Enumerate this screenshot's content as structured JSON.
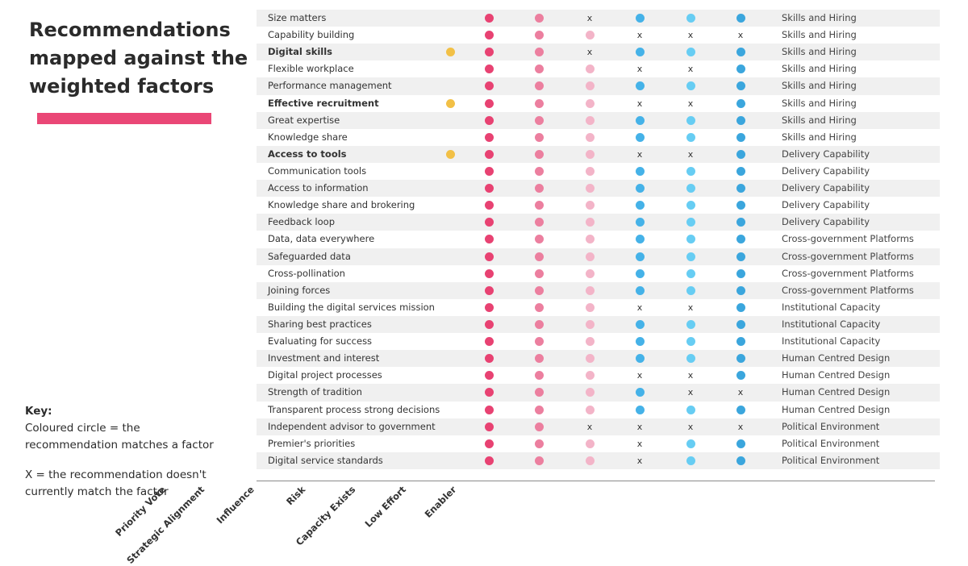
{
  "title": "Recommendations mapped against the weighted factors",
  "colors": {
    "priority": "#f2c046",
    "strategic_alignment": "#e84272",
    "influence": "#ec7f9f",
    "risk": "#f3b4c8",
    "capacity": "#45b2e8",
    "low_effort": "#67cdf3",
    "enabler": "#3ba6dd",
    "title_bar": "#ea4776",
    "row_shade": "#f0f0f0"
  },
  "key": {
    "heading": "Key:",
    "line1": "Coloured circle = the",
    "line2": "recommendation matches a factor",
    "line3": "X = the recommendation doesn't",
    "line4": "currently match the factor"
  },
  "x_symbol": "x",
  "columns": [
    {
      "id": "priority",
      "label": "Priority Vote"
    },
    {
      "id": "strategic_alignment",
      "label": "Strategic Alignment"
    },
    {
      "id": "influence",
      "label": "Influence"
    },
    {
      "id": "risk",
      "label": "Risk"
    },
    {
      "id": "capacity",
      "label": "Capacity Exists"
    },
    {
      "id": "low_effort",
      "label": "Low Effort"
    },
    {
      "id": "enabler",
      "label": "Enabler"
    }
  ],
  "rows": [
    {
      "name": "Size matters",
      "bold": false,
      "category": "Skills and Hiring",
      "priority": "none",
      "strategic_alignment": "dot",
      "influence": "dot",
      "risk": "x",
      "capacity": "dot",
      "low_effort": "dot",
      "enabler": "dot"
    },
    {
      "name": "Capability building",
      "bold": false,
      "category": "Skills and Hiring",
      "priority": "none",
      "strategic_alignment": "dot",
      "influence": "dot",
      "risk": "dot",
      "capacity": "x",
      "low_effort": "x",
      "enabler": "x"
    },
    {
      "name": "Digital skills",
      "bold": true,
      "category": "Skills and Hiring",
      "priority": "dot",
      "strategic_alignment": "dot",
      "influence": "dot",
      "risk": "x",
      "capacity": "dot",
      "low_effort": "dot",
      "enabler": "dot"
    },
    {
      "name": "Flexible workplace",
      "bold": false,
      "category": "Skills and Hiring",
      "priority": "none",
      "strategic_alignment": "dot",
      "influence": "dot",
      "risk": "dot",
      "capacity": "x",
      "low_effort": "x",
      "enabler": "dot"
    },
    {
      "name": "Performance management",
      "bold": false,
      "category": "Skills and Hiring",
      "priority": "none",
      "strategic_alignment": "dot",
      "influence": "dot",
      "risk": "dot",
      "capacity": "dot",
      "low_effort": "dot",
      "enabler": "dot"
    },
    {
      "name": "Effective recruitment",
      "bold": true,
      "category": "Skills and Hiring",
      "priority": "dot",
      "strategic_alignment": "dot",
      "influence": "dot",
      "risk": "dot",
      "capacity": "x",
      "low_effort": "x",
      "enabler": "dot"
    },
    {
      "name": "Great expertise",
      "bold": false,
      "category": "Skills and Hiring",
      "priority": "none",
      "strategic_alignment": "dot",
      "influence": "dot",
      "risk": "dot",
      "capacity": "dot",
      "low_effort": "dot",
      "enabler": "dot"
    },
    {
      "name": "Knowledge share",
      "bold": false,
      "category": "Skills and Hiring",
      "priority": "none",
      "strategic_alignment": "dot",
      "influence": "dot",
      "risk": "dot",
      "capacity": "dot",
      "low_effort": "dot",
      "enabler": "dot"
    },
    {
      "name": "Access to tools",
      "bold": true,
      "category": "Delivery Capability",
      "priority": "dot",
      "strategic_alignment": "dot",
      "influence": "dot",
      "risk": "dot",
      "capacity": "x",
      "low_effort": "x",
      "enabler": "dot"
    },
    {
      "name": "Communication tools",
      "bold": false,
      "category": "Delivery Capability",
      "priority": "none",
      "strategic_alignment": "dot",
      "influence": "dot",
      "risk": "dot",
      "capacity": "dot",
      "low_effort": "dot",
      "enabler": "dot"
    },
    {
      "name": "Access to information",
      "bold": false,
      "category": "Delivery Capability",
      "priority": "none",
      "strategic_alignment": "dot",
      "influence": "dot",
      "risk": "dot",
      "capacity": "dot",
      "low_effort": "dot",
      "enabler": "dot"
    },
    {
      "name": "Knowledge share and brokering",
      "bold": false,
      "category": "Delivery Capability",
      "priority": "none",
      "strategic_alignment": "dot",
      "influence": "dot",
      "risk": "dot",
      "capacity": "dot",
      "low_effort": "dot",
      "enabler": "dot"
    },
    {
      "name": "Feedback loop",
      "bold": false,
      "category": "Delivery Capability",
      "priority": "none",
      "strategic_alignment": "dot",
      "influence": "dot",
      "risk": "dot",
      "capacity": "dot",
      "low_effort": "dot",
      "enabler": "dot"
    },
    {
      "name": "Data, data everywhere",
      "bold": false,
      "category": "Cross-government Platforms",
      "priority": "none",
      "strategic_alignment": "dot",
      "influence": "dot",
      "risk": "dot",
      "capacity": "dot",
      "low_effort": "dot",
      "enabler": "dot"
    },
    {
      "name": "Safeguarded data",
      "bold": false,
      "category": "Cross-government Platforms",
      "priority": "none",
      "strategic_alignment": "dot",
      "influence": "dot",
      "risk": "dot",
      "capacity": "dot",
      "low_effort": "dot",
      "enabler": "dot"
    },
    {
      "name": "Cross-pollination",
      "bold": false,
      "category": "Cross-government Platforms",
      "priority": "none",
      "strategic_alignment": "dot",
      "influence": "dot",
      "risk": "dot",
      "capacity": "dot",
      "low_effort": "dot",
      "enabler": "dot"
    },
    {
      "name": "Joining forces",
      "bold": false,
      "category": "Cross-government Platforms",
      "priority": "none",
      "strategic_alignment": "dot",
      "influence": "dot",
      "risk": "dot",
      "capacity": "dot",
      "low_effort": "dot",
      "enabler": "dot"
    },
    {
      "name": "Building the digital services mission",
      "bold": false,
      "category": "Institutional Capacity",
      "priority": "none",
      "strategic_alignment": "dot",
      "influence": "dot",
      "risk": "dot",
      "capacity": "x",
      "low_effort": "x",
      "enabler": "dot"
    },
    {
      "name": "Sharing best practices",
      "bold": false,
      "category": "Institutional Capacity",
      "priority": "none",
      "strategic_alignment": "dot",
      "influence": "dot",
      "risk": "dot",
      "capacity": "dot",
      "low_effort": "dot",
      "enabler": "dot"
    },
    {
      "name": "Evaluating for success",
      "bold": false,
      "category": "Institutional Capacity",
      "priority": "none",
      "strategic_alignment": "dot",
      "influence": "dot",
      "risk": "dot",
      "capacity": "dot",
      "low_effort": "dot",
      "enabler": "dot"
    },
    {
      "name": "Investment and interest",
      "bold": false,
      "category": "Human Centred Design",
      "priority": "none",
      "strategic_alignment": "dot",
      "influence": "dot",
      "risk": "dot",
      "capacity": "dot",
      "low_effort": "dot",
      "enabler": "dot"
    },
    {
      "name": "Digital project processes",
      "bold": false,
      "category": "Human Centred Design",
      "priority": "none",
      "strategic_alignment": "dot",
      "influence": "dot",
      "risk": "dot",
      "capacity": "x",
      "low_effort": "x",
      "enabler": "dot"
    },
    {
      "name": "Strength of tradition",
      "bold": false,
      "category": "Human Centred Design",
      "priority": "none",
      "strategic_alignment": "dot",
      "influence": "dot",
      "risk": "dot",
      "capacity": "dot",
      "low_effort": "x",
      "enabler": "x"
    },
    {
      "name": "Transparent process strong decisions",
      "bold": false,
      "category": "Human Centred Design",
      "priority": "none",
      "strategic_alignment": "dot",
      "influence": "dot",
      "risk": "dot",
      "capacity": "dot",
      "low_effort": "dot",
      "enabler": "dot"
    },
    {
      "name": "Independent advisor to government",
      "bold": false,
      "category": "Political Environment",
      "priority": "none",
      "strategic_alignment": "dot",
      "influence": "dot",
      "risk": "x",
      "capacity": "x",
      "low_effort": "x",
      "enabler": "x"
    },
    {
      "name": "Premier's priorities",
      "bold": false,
      "category": "Political Environment",
      "priority": "none",
      "strategic_alignment": "dot",
      "influence": "dot",
      "risk": "dot",
      "capacity": "x",
      "low_effort": "dot",
      "enabler": "dot"
    },
    {
      "name": "Digital service standards",
      "bold": false,
      "category": "Political Environment",
      "priority": "none",
      "strategic_alignment": "dot",
      "influence": "dot",
      "risk": "dot",
      "capacity": "x",
      "low_effort": "dot",
      "enabler": "dot"
    }
  ]
}
